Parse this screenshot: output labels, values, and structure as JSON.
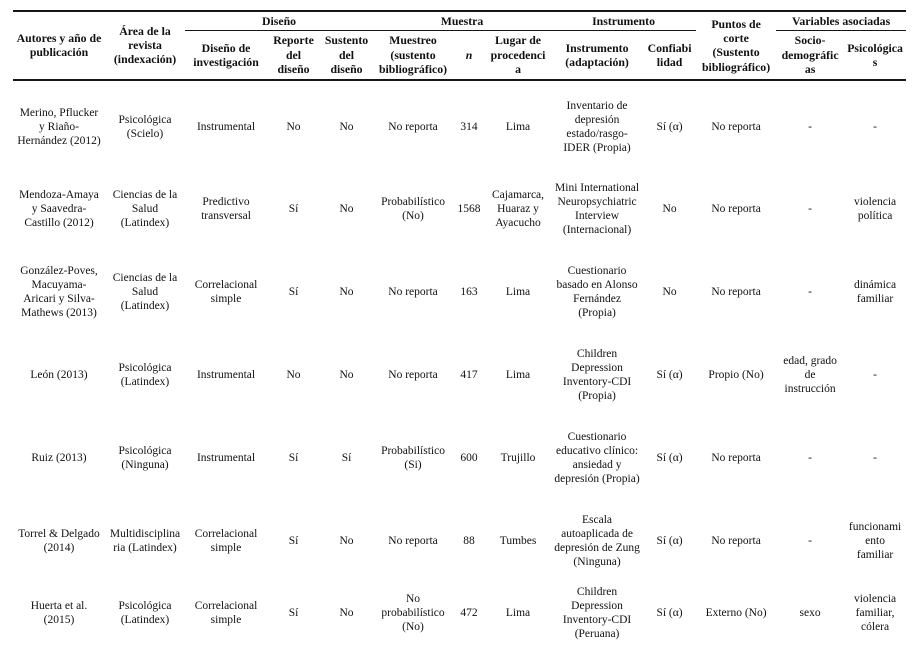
{
  "table": {
    "group_headers": {
      "autores": "Autores y año de publicación",
      "area": "Área de la revista (indexación)",
      "diseno": "Diseño",
      "muestra": "Muestra",
      "instrumento": "Instrumento",
      "puntos": "Puntos de corte (Sustento bibliográfico)",
      "variables": "Variables asociadas"
    },
    "sub_headers": {
      "diseno_inv": "Diseño de investigación",
      "reporte": "Reporte del diseño",
      "sustento": "Sustento del diseño",
      "muestreo": "Muestreo (sustento bibliográfico)",
      "n": "n",
      "lugar": "Lugar de procedencia",
      "instrumento": "Instrumento (adaptación)",
      "confiabilidad": "Confiabilidad",
      "socio": "Socio-demográficas",
      "psico": "Psicológicas"
    },
    "rows": [
      {
        "autores": "Merino, Pflucker y Riaño-Hernández (2012)",
        "area": "Psicológica (Scielo)",
        "diseno_inv": "Instrumental",
        "reporte": "No",
        "sustento": "No",
        "muestreo": "No reporta",
        "n": "314",
        "lugar": "Lima",
        "instrumento": "Inventario de depresión estado/rasgo-IDER (Propia)",
        "confiabilidad": "Sí (α)",
        "puntos": "No reporta",
        "socio": "-",
        "psico": "-"
      },
      {
        "autores": "Mendoza-Amaya y Saavedra-Castillo (2012)",
        "area": "Ciencias de la Salud (Latindex)",
        "diseno_inv": "Predictivo transversal",
        "reporte": "Sí",
        "sustento": "No",
        "muestreo": "Probabilístico (No)",
        "n": "1568",
        "lugar": "Cajamarca, Huaraz y Ayacucho",
        "instrumento": "Mini International Neuropsychiatric Interview (Internacional)",
        "confiabilidad": "No",
        "puntos": "No reporta",
        "socio": "-",
        "psico": "violencia política"
      },
      {
        "autores": "González-Poves, Macuyama-Aricari y Silva-Mathews (2013)",
        "area": "Ciencias de la Salud (Latindex)",
        "diseno_inv": "Correlacional simple",
        "reporte": "Sí",
        "sustento": "No",
        "muestreo": "No reporta",
        "n": "163",
        "lugar": "Lima",
        "instrumento": "Cuestionario basado en Alonso Fernández (Propia)",
        "confiabilidad": "No",
        "puntos": "No reporta",
        "socio": "-",
        "psico": "dinámica familiar"
      },
      {
        "autores": "León (2013)",
        "area": "Psicológica (Latindex)",
        "diseno_inv": "Instrumental",
        "reporte": "No",
        "sustento": "No",
        "muestreo": "No reporta",
        "n": "417",
        "lugar": "Lima",
        "instrumento": "Children Depression Inventory-CDI (Propia)",
        "confiabilidad": "Sí (α)",
        "puntos": "Propio (No)",
        "socio": "edad, grado de instrucción",
        "psico": "-"
      },
      {
        "autores": "Ruiz (2013)",
        "area": "Psicológica (Ninguna)",
        "diseno_inv": "Instrumental",
        "reporte": "Sí",
        "sustento": "Sí",
        "muestreo": "Probabilístico (Si)",
        "n": "600",
        "lugar": "Trujillo",
        "instrumento": "Cuestionario educativo clínico: ansiedad y depresión (Propia)",
        "confiabilidad": "Sí (α)",
        "puntos": "No reporta",
        "socio": "-",
        "psico": "-"
      },
      {
        "autores": "Torrel & Delgado (2014)",
        "area": "Multidisciplinaria (Latindex)",
        "diseno_inv": "Correlacional simple",
        "reporte": "Sí",
        "sustento": "No",
        "muestreo": "No reporta",
        "n": "88",
        "lugar": "Tumbes",
        "instrumento": "Escala autoaplicada de depresión de Zung (Ninguna)",
        "confiabilidad": "Sí (α)",
        "puntos": "No reporta",
        "socio": "-",
        "psico": "funcionamiento familiar"
      },
      {
        "autores": "Huerta et al. (2015)",
        "area": "Psicológica (Latindex)",
        "diseno_inv": "Correlacional simple",
        "reporte": "Sí",
        "sustento": "No",
        "muestreo": "No probabilístico (No)",
        "n": "472",
        "lugar": "Lima",
        "instrumento": "Children Depression Inventory-CDI (Peruana)",
        "confiabilidad": "Sí (α)",
        "puntos": "Externo (No)",
        "socio": "sexo",
        "psico": "violencia familiar, cólera"
      }
    ]
  }
}
